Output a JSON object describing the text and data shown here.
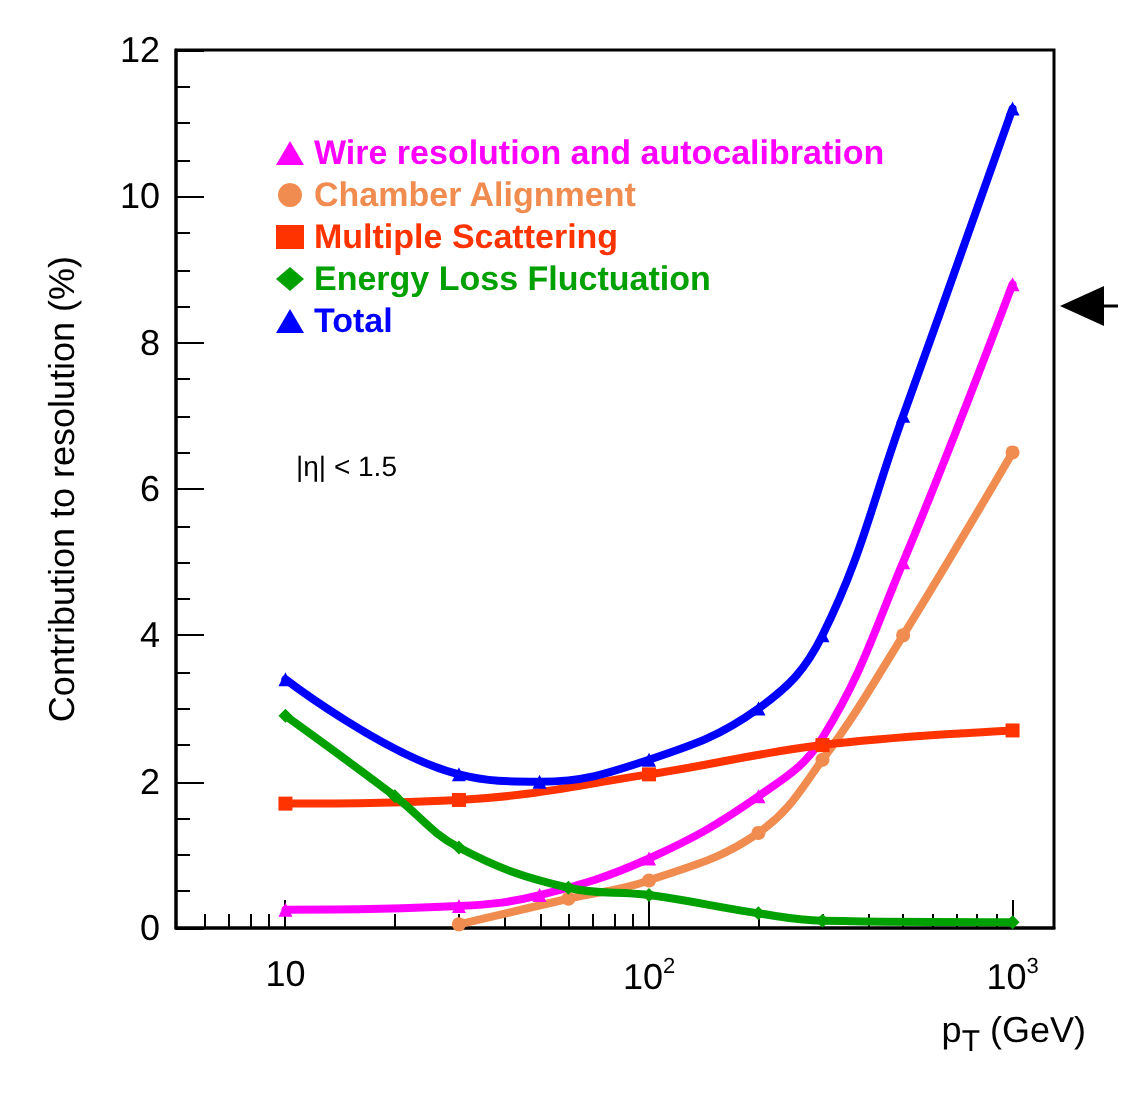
{
  "chart_data": {
    "type": "line",
    "xlabel": "p$_{T}$ (GeV)",
    "ylabel": "Contribution to resolution (%)",
    "log": "x",
    "xlim": [
      5,
      1300
    ],
    "xticks": [
      {
        "value": 10,
        "label": "10"
      },
      {
        "value": 100,
        "label": "10$^{2}$"
      },
      {
        "value": 1000,
        "label": "10$^{3}$"
      }
    ],
    "ylim": [
      0,
      12
    ],
    "yticks": [
      0,
      2,
      4,
      6,
      8,
      10,
      12
    ],
    "grid": false,
    "legend": "top left",
    "annotations": [
      "|η| < 1.5"
    ],
    "series": [
      {
        "name": "Wire resolution and autocalibration",
        "color": "#ff00ff",
        "marker": "triangle",
        "x": [
          10,
          30,
          50,
          100,
          200,
          300,
          500,
          1000
        ],
        "values": [
          0.25,
          0.3,
          0.45,
          0.95,
          1.8,
          2.6,
          5,
          8.8
        ]
      },
      {
        "name": "Chamber Alignment",
        "color": "#f08c50",
        "marker": "circle",
        "x": [
          30,
          60,
          100,
          200,
          300,
          500,
          1000
        ],
        "values": [
          0.05,
          0.4,
          0.65,
          1.3,
          2.3,
          4,
          6.5
        ]
      },
      {
        "name": "Multiple Scattering",
        "color": "#ff3300",
        "marker": "square",
        "x": [
          10,
          30,
          100,
          300,
          1000
        ],
        "values": [
          1.7,
          1.75,
          2.1,
          2.5,
          2.7
        ]
      },
      {
        "name": "Energy Loss Fluctuation",
        "color": "#00a000",
        "marker": "diamond",
        "x": [
          10,
          20,
          30,
          60,
          100,
          200,
          300,
          1000
        ],
        "values": [
          2.9,
          1.8,
          1.1,
          0.55,
          0.45,
          0.2,
          0.1,
          0.08
        ]
      },
      {
        "name": "Total",
        "color": "#0000ff",
        "marker": "triangle",
        "x": [
          10,
          30,
          50,
          100,
          200,
          300,
          500,
          1000
        ],
        "values": [
          3.4,
          2.1,
          2.0,
          2.3,
          3.0,
          4.0,
          7,
          11.2
        ]
      }
    ]
  }
}
